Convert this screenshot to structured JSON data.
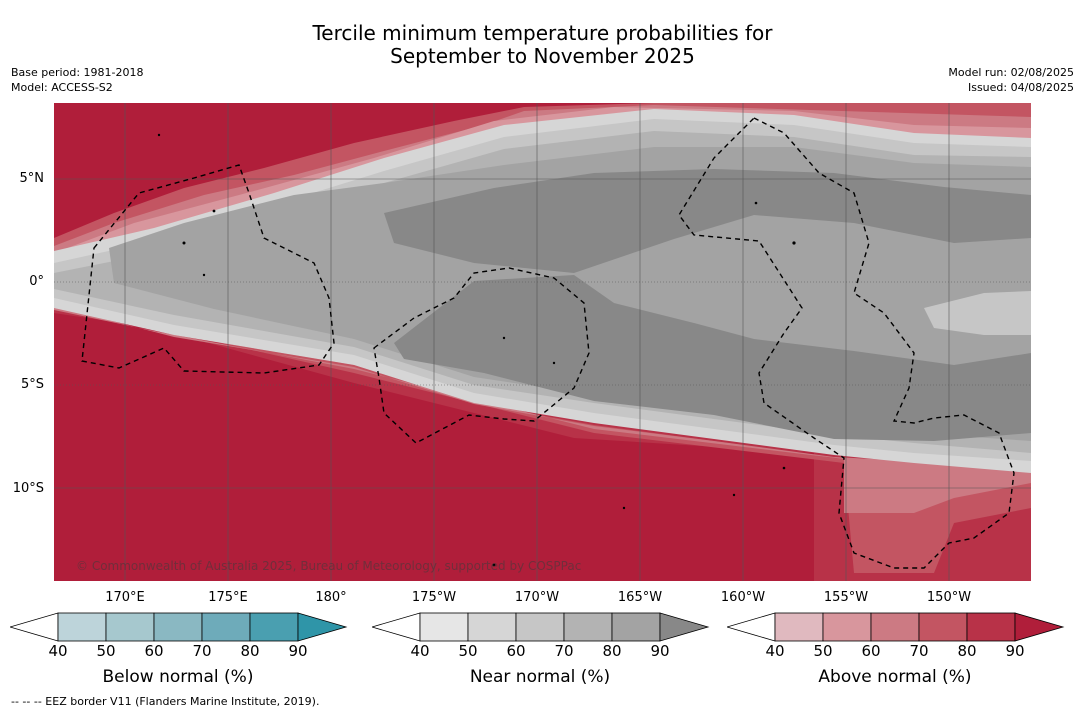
{
  "title": {
    "line1": "Tercile minimum temperature probabilities for",
    "line2": "September to November 2025"
  },
  "meta": {
    "base_period": "Base period: 1981-2018",
    "model": "Model: ACCESS-S2",
    "model_run": "Model run: 02/08/2025",
    "issued": "Issued: 04/08/2025"
  },
  "map": {
    "lat_labels": [
      "5°N",
      "0°",
      "5°S",
      "10°S"
    ],
    "lon_labels": [
      "170°E",
      "175°E",
      "180°",
      "175°W",
      "170°W",
      "165°W",
      "160°W",
      "155°W",
      "150°W"
    ],
    "copyright": "© Commonwealth of Australia 2025, Bureau of Meteorology, supported by COSPPac",
    "colors": {
      "above_dominant": "#b01e3a",
      "near_dark": "#888888",
      "near_mid": "#a3a3a3",
      "near_light": "#c6c6c6"
    }
  },
  "legend": {
    "below": {
      "label": "Below normal (%)",
      "ticks": [
        "40",
        "50",
        "60",
        "70",
        "80",
        "90"
      ],
      "colors": [
        "#bdd4da",
        "#a6c8ce",
        "#8ab8c2",
        "#6eabba",
        "#4a9fb0",
        "#2f95a8"
      ]
    },
    "near": {
      "label": "Near normal (%)",
      "ticks": [
        "40",
        "50",
        "60",
        "70",
        "80",
        "90"
      ],
      "colors": [
        "#e6e6e6",
        "#d6d6d6",
        "#c6c6c6",
        "#b3b3b3",
        "#a3a3a3",
        "#888888"
      ]
    },
    "above": {
      "label": "Above normal (%)",
      "ticks": [
        "40",
        "50",
        "60",
        "70",
        "80",
        "90"
      ],
      "colors": [
        "#e0b9bf",
        "#d8969d",
        "#cc7a83",
        "#c35562",
        "#b83248",
        "#b01e3a"
      ]
    }
  },
  "footnote": "--  --  -- EEZ border V11 (Flanders Marine Institute, 2019)."
}
